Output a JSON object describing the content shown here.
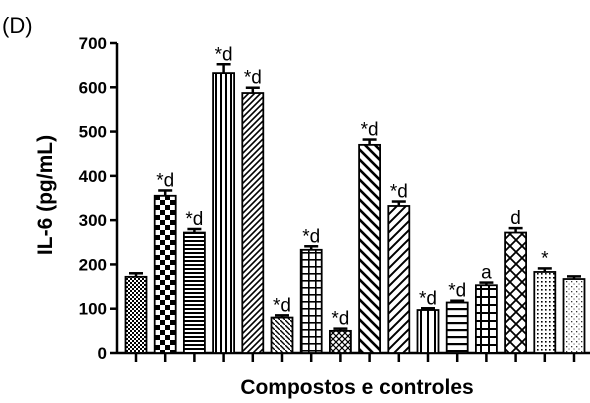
{
  "chart_data": {
    "type": "bar",
    "panel_label": "(D)",
    "ylabel": "IL-6 (pg/mL)",
    "xlabel": "Compostos e controles",
    "ylim": [
      0,
      700
    ],
    "yticks": [
      0,
      100,
      200,
      300,
      400,
      500,
      600,
      700
    ],
    "grid": false,
    "legend": "none",
    "error_bars": true,
    "bars": [
      {
        "value": 172,
        "error": 8,
        "annotation": "",
        "pattern": "dots-dense"
      },
      {
        "value": 355,
        "error": 12,
        "annotation": "*d",
        "pattern": "checker"
      },
      {
        "value": 272,
        "error": 8,
        "annotation": "*d",
        "pattern": "horizontal-lines"
      },
      {
        "value": 632,
        "error": 20,
        "annotation": "*d",
        "pattern": "vertical-lines"
      },
      {
        "value": 587,
        "error": 12,
        "annotation": "*d",
        "pattern": "diagonal-up"
      },
      {
        "value": 80,
        "error": 5,
        "annotation": "*d",
        "pattern": "diagonal-down"
      },
      {
        "value": 233,
        "error": 8,
        "annotation": "*d",
        "pattern": "grid"
      },
      {
        "value": 50,
        "error": 5,
        "annotation": "*d",
        "pattern": "crosshatch-small"
      },
      {
        "value": 470,
        "error": 12,
        "annotation": "*d",
        "pattern": "diagonal-down-wide"
      },
      {
        "value": 332,
        "error": 10,
        "annotation": "*d",
        "pattern": "diagonal-up-wide"
      },
      {
        "value": 97,
        "error": 4,
        "annotation": "*d",
        "pattern": "vertical-lines-wide"
      },
      {
        "value": 114,
        "error": 4,
        "annotation": "*d",
        "pattern": "horizontal-lines-wide"
      },
      {
        "value": 153,
        "error": 6,
        "annotation": "a",
        "pattern": "grid-wide"
      },
      {
        "value": 272,
        "error": 10,
        "annotation": "d",
        "pattern": "crosshatch-diagonal"
      },
      {
        "value": 183,
        "error": 8,
        "annotation": "*",
        "pattern": "dots"
      },
      {
        "value": 167,
        "error": 6,
        "annotation": "",
        "pattern": "dots-light"
      }
    ]
  }
}
